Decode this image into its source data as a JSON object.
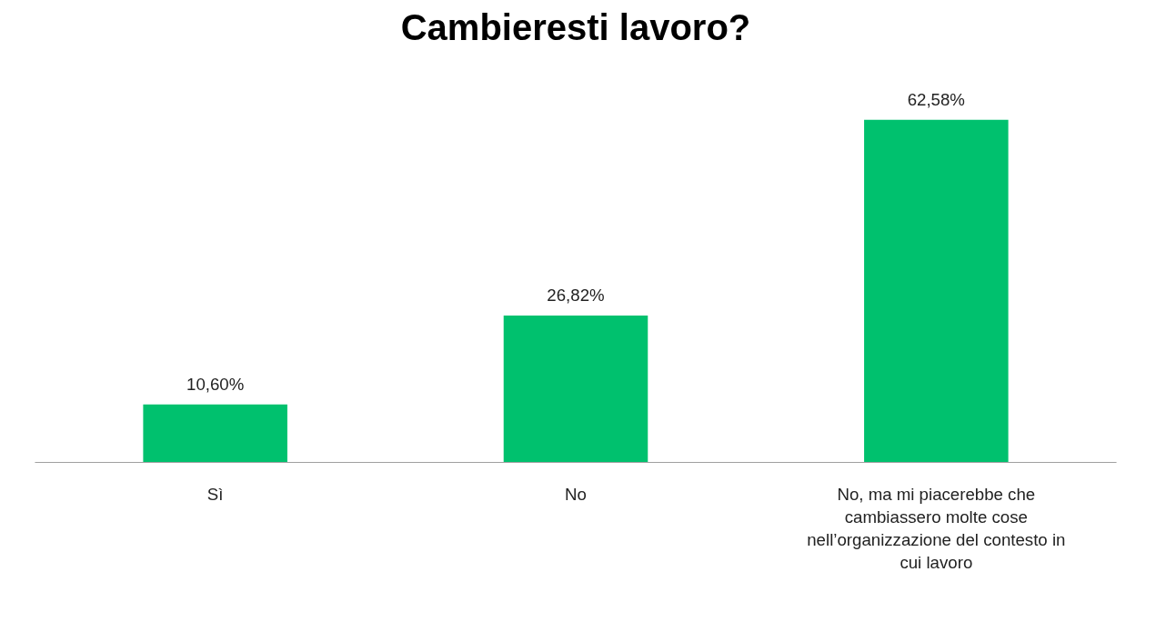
{
  "chart_data": {
    "type": "bar",
    "title": "Cambieresti lavoro?",
    "categories": [
      "Sì",
      "No",
      "No, ma mi piacerebbe che cambiassero molte cose nell’organizzazione del contesto in cui lavoro"
    ],
    "values": [
      10.6,
      26.82,
      62.58
    ],
    "value_labels": [
      "10,60%",
      "26,82%",
      "62,58%"
    ],
    "color": "#00c16e"
  }
}
